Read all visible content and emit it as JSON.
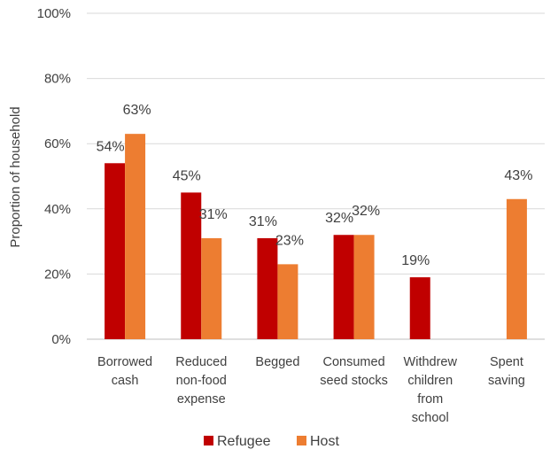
{
  "chart_data": {
    "type": "bar",
    "title": "",
    "xlabel": "",
    "ylabel": "Proportion of household",
    "ylim": [
      0,
      100
    ],
    "yticks": [
      "0%",
      "20%",
      "40%",
      "60%",
      "80%",
      "100%"
    ],
    "yticks_values": [
      0,
      20,
      40,
      60,
      80,
      100
    ],
    "grid": true,
    "legend_position": "bottom",
    "categories": [
      [
        "Borrowed",
        "cash"
      ],
      [
        "Reduced",
        "non-food",
        "expense"
      ],
      [
        "Begged"
      ],
      [
        "Consumed",
        "seed stocks"
      ],
      [
        "Withdrew",
        "children",
        "from",
        "school"
      ],
      [
        "Spent",
        "saving"
      ]
    ],
    "series": [
      {
        "name": "Refugee",
        "color": "#C00000",
        "values": [
          54,
          45,
          31,
          32,
          19,
          null
        ],
        "labels": [
          "54%",
          "45%",
          "31%",
          "32%",
          "19%",
          ""
        ]
      },
      {
        "name": "Host",
        "color": "#ED7D31",
        "values": [
          63,
          31,
          23,
          32,
          null,
          43
        ],
        "labels": [
          "63%",
          "31%",
          "23%",
          "32%",
          "",
          "43%"
        ]
      }
    ],
    "gridline_color": "#D9D9D9",
    "axis_color": "#BFBFBF"
  }
}
